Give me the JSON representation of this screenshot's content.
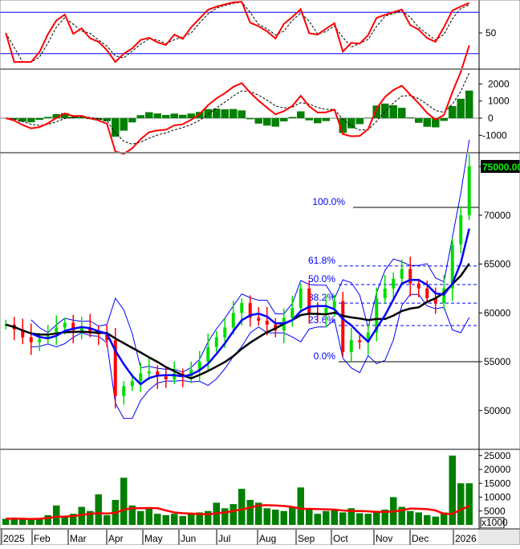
{
  "chart_data": [
    {
      "type": "line",
      "panel": "oscillator",
      "yticks": [
        50
      ],
      "ylim": [
        0,
        100
      ],
      "bands": [
        80,
        20
      ],
      "colors": {
        "main": "#ff0000",
        "signal": "#000000",
        "band": "#0000ff"
      }
    },
    {
      "type": "bar",
      "panel": "macd",
      "yticks": [
        2000,
        1000,
        0,
        -1000
      ],
      "ylim": [
        -1500,
        2300
      ],
      "colors": {
        "hist": "#008000",
        "macd": "#ff0000",
        "signal": "#000000"
      }
    },
    {
      "type": "candlestick",
      "panel": "price",
      "ylim": [
        46500,
        76500
      ],
      "yticks": [
        75000,
        70000,
        65000,
        60000,
        55000,
        50000
      ],
      "last_price_label": "75000.00",
      "x_labels": [
        "2025",
        "Feb",
        "Mar",
        "Apr",
        "May",
        "Jun",
        "Jul",
        "Aug",
        "Sep",
        "Oct",
        "Nov",
        "Dec",
        "2026"
      ],
      "close": [
        58800,
        58300,
        57500,
        57000,
        57300,
        57800,
        58500,
        59000,
        58200,
        58500,
        58000,
        57800,
        57200,
        51500,
        52500,
        53000,
        53800,
        54000,
        53500,
        53200,
        53800,
        53500,
        54200,
        55000,
        56500,
        57500,
        58500,
        60000,
        61000,
        59500,
        59200,
        58800,
        58200,
        59500,
        60500,
        62500,
        60000,
        59800,
        60500,
        61200,
        56000,
        57200,
        57000,
        58000,
        61500,
        62500,
        63500,
        64500,
        63000,
        62500,
        61500,
        61000,
        62500,
        67000,
        70000,
        75000
      ],
      "fibonacci": [
        {
          "label": "100.0%",
          "value": 70800
        },
        {
          "label": "61.8%",
          "value": 64800
        },
        {
          "label": "50.0%",
          "value": 62900
        },
        {
          "label": "38.2%",
          "value": 61000
        },
        {
          "label": "23.6%",
          "value": 58700
        },
        {
          "label": "0.0%",
          "value": 55000
        }
      ],
      "colors": {
        "up": "#00dd00",
        "down": "#ff0000",
        "bollinger": "#0000ff",
        "ma_fast": "#0000ff",
        "ma_slow": "#000000",
        "fib": "#0000ff"
      }
    },
    {
      "type": "bar",
      "panel": "volume",
      "unit_label": "x1000",
      "ylim": [
        0,
        26000
      ],
      "yticks": [
        25000,
        20000,
        15000,
        10000,
        5000
      ],
      "values": [
        2200,
        2500,
        2100,
        1800,
        2400,
        3500,
        7000,
        3000,
        4000,
        6500,
        5000,
        11000,
        3500,
        9000,
        17000,
        7000,
        5000,
        6000,
        4000,
        3500,
        4000,
        3200,
        3800,
        4500,
        5000,
        8000,
        6000,
        7500,
        13000,
        9000,
        8000,
        6000,
        5500,
        5000,
        6500,
        13500,
        6000,
        4000,
        5000,
        5500,
        4500,
        6000,
        4200,
        4000,
        4500,
        5500,
        10000,
        6500,
        5000,
        4500,
        3500,
        3000,
        4500,
        25000,
        15000,
        15000
      ],
      "ma_values": [
        2200,
        2300,
        2200,
        2100,
        2200,
        2500,
        2900,
        3000,
        3200,
        3600,
        4000,
        4200,
        4100,
        4300,
        5500,
        6000,
        6000,
        6100,
        6000,
        5200,
        4500,
        4200,
        4100,
        3900,
        3800,
        4200,
        4500,
        5000,
        5600,
        6200,
        7000,
        7100,
        7000,
        6800,
        6500,
        5800,
        5800,
        5700,
        5600,
        5500,
        5200,
        5000,
        5000,
        4900,
        4700,
        4700,
        4800,
        5300,
        5900,
        5800,
        5700,
        5200,
        4000,
        4000,
        5500,
        6800
      ],
      "colors": {
        "bar": "#008000",
        "ma": "#ff0000"
      }
    }
  ]
}
